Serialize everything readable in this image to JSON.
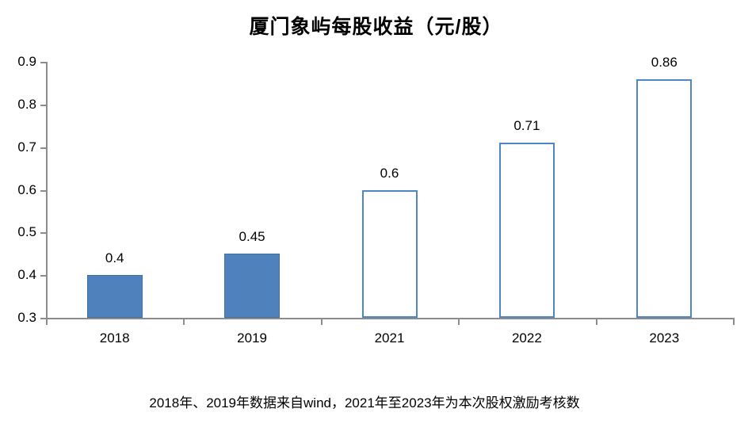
{
  "chart_data": {
    "type": "bar",
    "title": "厦门象屿每股收益（元/股）",
    "categories": [
      "2018",
      "2019",
      "2021",
      "2022",
      "2023"
    ],
    "values": [
      0.4,
      0.45,
      0.6,
      0.71,
      0.86
    ],
    "data_labels": [
      "0.4",
      "0.45",
      "0.6",
      "0.71",
      "0.86"
    ],
    "bar_styles": [
      "solid",
      "solid",
      "outline",
      "outline",
      "outline"
    ],
    "series": [
      {
        "name": "每股收益",
        "values": [
          0.4,
          0.45,
          0.6,
          0.71,
          0.86
        ]
      }
    ],
    "xlabel": "",
    "ylabel": "",
    "ylim": [
      0.3,
      0.9
    ],
    "y_ticks": [
      "0.3",
      "0.4",
      "0.5",
      "0.6",
      "0.7",
      "0.8",
      "0.9"
    ],
    "grid": false,
    "legend": "none",
    "colors": {
      "solid_fill": "#4F81BD",
      "solid_border": "#41719C",
      "outline_fill": "#FFFFFF",
      "outline_border": "#4E86C8",
      "axis": "#8C8C8C",
      "text": "#000000"
    }
  },
  "caption": "2018年、2019年数据来自wind，2021年至2023年为本次股权激励考核数"
}
